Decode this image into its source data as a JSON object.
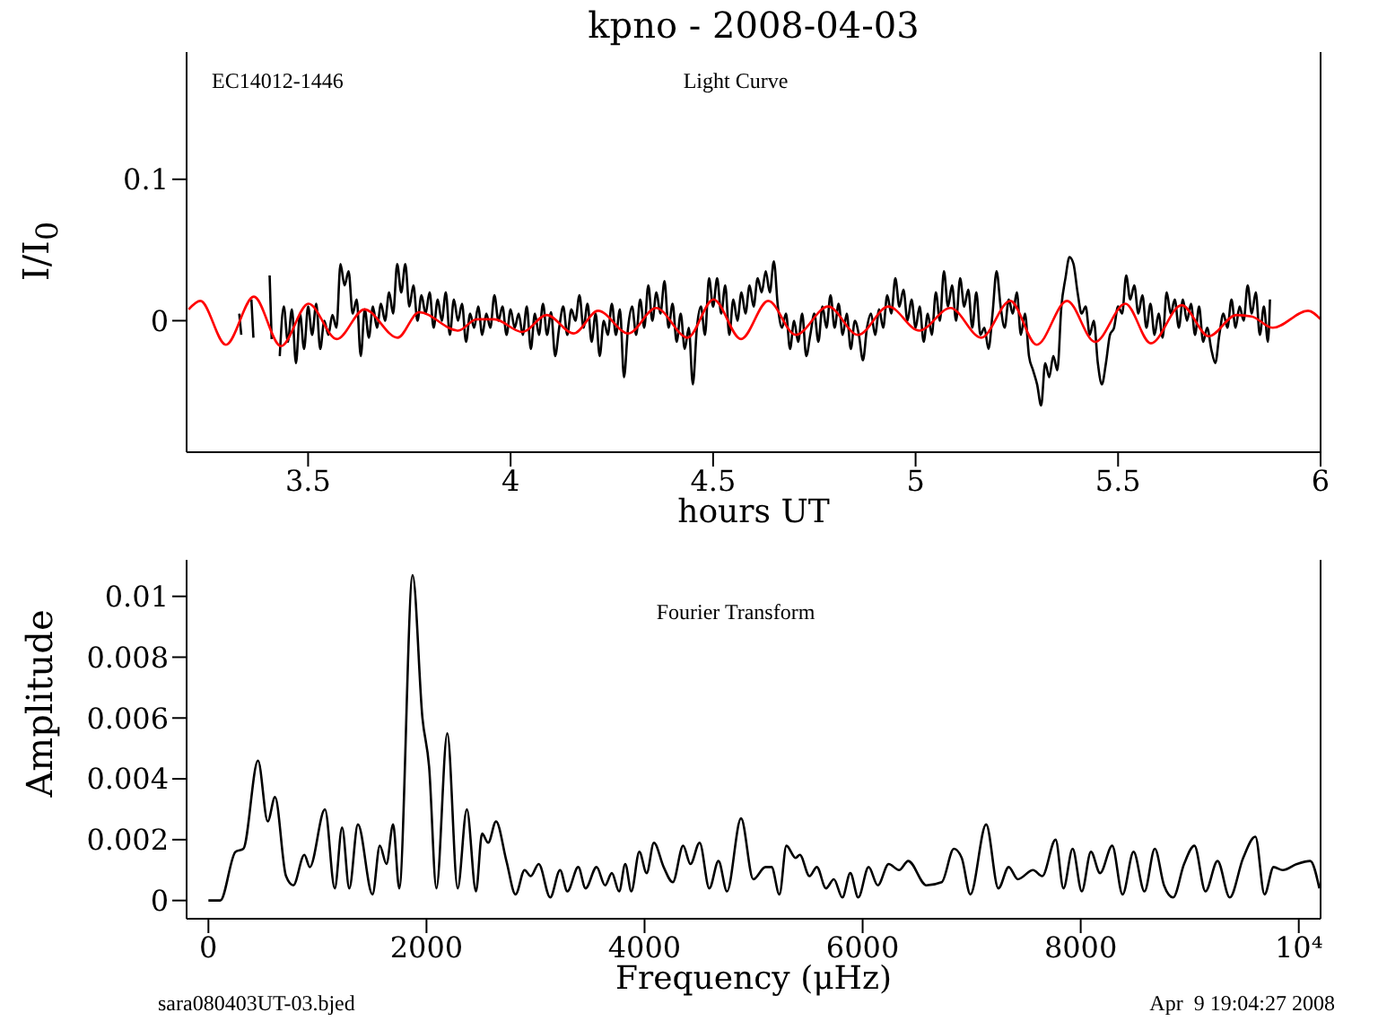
{
  "chart_data": [
    {
      "type": "line",
      "title": "kpno - 2008-04-03",
      "xlabel": "hours UT",
      "ylabel": "I/I$_{0}$",
      "annotations": [
        "EC14012-1446",
        "Light Curve"
      ],
      "marker": "none",
      "xlim": [
        3.2,
        6.0
      ],
      "xticks": [
        3.5,
        4,
        4.5,
        5,
        5.5,
        6
      ],
      "ylim": [
        -0.093,
        0.19
      ],
      "yticks": [
        0,
        0.1
      ],
      "series": [
        {
          "color": "#000000",
          "x": [
            3.33,
            3.335,
            3.34,
            3.36,
            3.365,
            3.37,
            3.405,
            3.41,
            3.42,
            3.43,
            3.44,
            3.45,
            3.46,
            3.47,
            3.48,
            3.49,
            3.5,
            3.51,
            3.52,
            3.53,
            3.54,
            3.55,
            3.56,
            3.57,
            3.58,
            3.59,
            3.6,
            3.61,
            3.62,
            3.63,
            3.64,
            3.65,
            3.66,
            3.67,
            3.68,
            3.69,
            3.7,
            3.71,
            3.72,
            3.73,
            3.74,
            3.75,
            3.76,
            3.77,
            3.78,
            3.79,
            3.8,
            3.81,
            3.82,
            3.83,
            3.84,
            3.85,
            3.86,
            3.87,
            3.88,
            3.89,
            3.9,
            3.91,
            3.92,
            3.93,
            3.94,
            3.95,
            3.96,
            3.97,
            3.98,
            3.99,
            4.0,
            4.01,
            4.02,
            4.03,
            4.04,
            4.05,
            4.06,
            4.07,
            4.08,
            4.09,
            4.1,
            4.11,
            4.12,
            4.13,
            4.14,
            4.15,
            4.16,
            4.17,
            4.18,
            4.19,
            4.2,
            4.21,
            4.22,
            4.23,
            4.24,
            4.25,
            4.26,
            4.27,
            4.28,
            4.29,
            4.3,
            4.31,
            4.32,
            4.33,
            4.34,
            4.35,
            4.36,
            4.37,
            4.38,
            4.39,
            4.4,
            4.41,
            4.42,
            4.43,
            4.44,
            4.45,
            4.46,
            4.47,
            4.48,
            4.49,
            4.5,
            4.51,
            4.52,
            4.53,
            4.54,
            4.55,
            4.56,
            4.57,
            4.58,
            4.59,
            4.6,
            4.61,
            4.62,
            4.63,
            4.64,
            4.65,
            4.66,
            4.67,
            4.68,
            4.69,
            4.7,
            4.71,
            4.72,
            4.73,
            4.74,
            4.75,
            4.76,
            4.77,
            4.78,
            4.79,
            4.8,
            4.81,
            4.82,
            4.83,
            4.84,
            4.85,
            4.86,
            4.87,
            4.88,
            4.89,
            4.9,
            4.91,
            4.92,
            4.93,
            4.94,
            4.95,
            4.96,
            4.97,
            4.98,
            4.99,
            5.0,
            5.01,
            5.02,
            5.03,
            5.04,
            5.05,
            5.06,
            5.07,
            5.08,
            5.09,
            5.1,
            5.11,
            5.12,
            5.13,
            5.14,
            5.15,
            5.16,
            5.17,
            5.18,
            5.19,
            5.2,
            5.21,
            5.22,
            5.23,
            5.24,
            5.25,
            5.26,
            5.27,
            5.28,
            5.29,
            5.3,
            5.31,
            5.32,
            5.33,
            5.34,
            5.35,
            5.36,
            5.37,
            5.38,
            5.39,
            5.4,
            5.41,
            5.42,
            5.43,
            5.44,
            5.45,
            5.46,
            5.47,
            5.48,
            5.49,
            5.5,
            5.51,
            5.52,
            5.53,
            5.54,
            5.55,
            5.56,
            5.57,
            5.58,
            5.59,
            5.6,
            5.61,
            5.62,
            5.63,
            5.64,
            5.65,
            5.66,
            5.67,
            5.68,
            5.69,
            5.7,
            5.71,
            5.72,
            5.73,
            5.74,
            5.75,
            5.76,
            5.77,
            5.78,
            5.79,
            5.8,
            5.81,
            5.82,
            5.83,
            5.84,
            5.85,
            5.86,
            5.87,
            5.875
          ],
          "values": [
            0.005,
            -0.01,
            null,
            0.015,
            -0.012,
            null,
            0.032,
            -0.013,
            null,
            -0.025,
            0.01,
            -0.015,
            0.008,
            -0.03,
            0.005,
            -0.02,
            0.01,
            -0.01,
            0.012,
            -0.02,
            0.0,
            -0.01,
            0.004,
            -0.005,
            0.04,
            0.025,
            0.035,
            0.005,
            0.015,
            -0.025,
            0.008,
            -0.012,
            0.01,
            -0.005,
            0.012,
            0.0,
            0.02,
            0.005,
            0.04,
            0.02,
            0.04,
            0.01,
            0.025,
            0.0,
            0.018,
            0.005,
            0.02,
            -0.005,
            0.015,
            0.0,
            0.02,
            -0.01,
            0.015,
            0.0,
            0.012,
            -0.015,
            0.005,
            -0.005,
            0.01,
            -0.01,
            0.005,
            -0.005,
            0.018,
            0.0,
            0.01,
            -0.01,
            0.008,
            -0.005,
            0.005,
            -0.01,
            0.01,
            -0.02,
            0.005,
            -0.01,
            0.012,
            -0.01,
            0.006,
            -0.025,
            -0.005,
            0.01,
            -0.01,
            0.008,
            0.0,
            0.018,
            -0.005,
            0.012,
            -0.015,
            0.005,
            -0.025,
            0.0,
            -0.01,
            0.012,
            -0.01,
            0.008,
            -0.04,
            -0.005,
            0.01,
            -0.01,
            0.015,
            -0.005,
            0.025,
            0.0,
            0.02,
            0.005,
            0.028,
            -0.005,
            0.012,
            -0.015,
            0.005,
            -0.02,
            -0.005,
            -0.045,
            -0.005,
            0.01,
            -0.01,
            0.03,
            0.01,
            0.03,
            0.005,
            0.025,
            -0.01,
            0.015,
            0.0,
            0.02,
            0.005,
            0.025,
            0.01,
            0.03,
            0.02,
            0.035,
            0.02,
            0.042,
            0.01,
            -0.005,
            0.005,
            -0.02,
            0.0,
            -0.015,
            0.005,
            -0.025,
            -0.01,
            0.005,
            -0.015,
            0.01,
            -0.005,
            0.018,
            -0.005,
            0.012,
            -0.01,
            0.005,
            -0.02,
            0.0,
            -0.01,
            -0.028,
            -0.005,
            0.005,
            -0.01,
            0.008,
            -0.005,
            0.018,
            0.005,
            0.03,
            0.01,
            0.022,
            0.0,
            0.015,
            -0.005,
            0.01,
            -0.015,
            0.005,
            -0.01,
            0.02,
            0.0,
            0.035,
            0.01,
            0.025,
            0.0,
            0.03,
            0.01,
            0.022,
            -0.005,
            0.02,
            -0.01,
            -0.005,
            -0.02,
            0.005,
            0.035,
            0.01,
            -0.005,
            0.015,
            0.005,
            0.02,
            -0.01,
            0.005,
            -0.025,
            -0.035,
            -0.045,
            -0.06,
            -0.03,
            -0.04,
            -0.025,
            -0.035,
            0.01,
            0.03,
            0.045,
            0.04,
            0.02,
            0.005,
            0.01,
            -0.01,
            0.0,
            -0.03,
            -0.045,
            -0.03,
            -0.01,
            -0.005,
            0.01,
            0.005,
            0.032,
            0.015,
            0.025,
            0.005,
            0.018,
            -0.005,
            0.012,
            -0.01,
            0.005,
            -0.012,
            0.02,
            0.005,
            0.015,
            -0.005,
            0.015,
            0.0,
            0.012,
            -0.01,
            0.01,
            -0.015,
            -0.005,
            -0.02,
            -0.03,
            -0.01,
            0.005,
            -0.005,
            0.015,
            -0.005,
            0.01,
            0.0,
            0.025,
            0.005,
            0.02,
            -0.01,
            0.01,
            -0.015,
            0.015
          ]
        },
        {
          "color": "#ff0000",
          "x": [
            3.205,
            3.234,
            3.297,
            3.366,
            3.433,
            3.501,
            3.571,
            3.639,
            3.721,
            3.774,
            3.871,
            3.916,
            3.96,
            4.029,
            4.089,
            4.156,
            4.216,
            4.291,
            4.359,
            4.437,
            4.501,
            4.569,
            4.636,
            4.704,
            4.784,
            4.858,
            4.933,
            5.009,
            5.086,
            5.162,
            5.234,
            5.299,
            5.374,
            5.443,
            5.518,
            5.581,
            5.657,
            5.724,
            5.792,
            5.83,
            5.882,
            5.969,
            6.0
          ],
          "values": [
            0.008,
            0.014,
            -0.017,
            0.017,
            -0.018,
            0.012,
            -0.013,
            0.008,
            -0.012,
            0.006,
            -0.007,
            0.001,
            0.001,
            -0.008,
            0.004,
            -0.009,
            0.007,
            -0.009,
            0.009,
            -0.012,
            0.015,
            -0.013,
            0.014,
            -0.01,
            0.01,
            -0.01,
            0.01,
            -0.007,
            0.009,
            -0.012,
            0.014,
            -0.017,
            0.014,
            -0.015,
            0.012,
            -0.016,
            0.011,
            -0.011,
            0.004,
            0.003,
            -0.005,
            0.007,
            0.001
          ]
        }
      ]
    },
    {
      "type": "line",
      "xlabel": "Frequency (μHz)",
      "ylabel": "Amplitude",
      "annotations": [
        "Fourier Transform",
        "sara080403UT-03.bjed",
        "Apr  9 19:04:27 2008"
      ],
      "marker": "none",
      "xlim": [
        -200,
        10200
      ],
      "xticks": [
        0,
        2000,
        4000,
        6000,
        8000,
        {
          "value": 10000,
          "label": "10⁴"
        }
      ],
      "ylim": [
        -0.0006,
        0.0112
      ],
      "yticks": [
        0,
        0.002,
        0.004,
        0.006,
        0.008,
        0.01
      ],
      "series": [
        {
          "color": "#000000",
          "x": [
            0,
            109,
            248,
            321,
            455,
            544,
            611,
            712,
            779,
            880,
            930,
            1069,
            1159,
            1226,
            1292,
            1371,
            1505,
            1572,
            1633,
            1694,
            1750,
            1873,
            1963,
            2024,
            2091,
            2191,
            2286,
            2370,
            2454,
            2510,
            2566,
            2638,
            2733,
            2817,
            2900,
            2956,
            3029,
            3135,
            3225,
            3292,
            3392,
            3459,
            3560,
            3638,
            3700,
            3767,
            3823,
            3879,
            3952,
            4019,
            4086,
            4175,
            4259,
            4354,
            4421,
            4505,
            4594,
            4678,
            4756,
            4885,
            4997,
            5109,
            5165,
            5237,
            5301,
            5385,
            5424,
            5513,
            5580,
            5664,
            5736,
            5814,
            5887,
            5960,
            6055,
            6139,
            6239,
            6334,
            6418,
            6585,
            6725,
            6837,
            6909,
            6988,
            7133,
            7245,
            7340,
            7423,
            7563,
            7647,
            7770,
            7842,
            7926,
            8010,
            8094,
            8178,
            8289,
            8384,
            8485,
            8585,
            8680,
            8764,
            8848,
            8948,
            9043,
            9144,
            9255,
            9367,
            9490,
            9602,
            9686,
            9769,
            9853,
            9982,
            10105,
            10189
          ],
          "values": [
            0,
            0,
            0.0016,
            0.0017,
            0.0046,
            0.0026,
            0.0034,
            0.0008,
            0.0005,
            0.0015,
            0.0011,
            0.003,
            0.0004,
            0.0024,
            0.0004,
            0.0025,
            0.0002,
            0.0018,
            0.0012,
            0.0025,
            0.0004,
            0.0107,
            0.006,
            0.0044,
            0.0004,
            0.0055,
            0.0004,
            0.003,
            0.0003,
            0.0022,
            0.0019,
            0.0026,
            0.0013,
            0.0002,
            0.001,
            0.0008,
            0.0012,
            0.0001,
            0.001,
            0.0003,
            0.0011,
            0.0004,
            0.0011,
            0.0005,
            0.0009,
            0.0003,
            0.0012,
            0.0003,
            0.0016,
            0.0009,
            0.0019,
            0.0011,
            0.0006,
            0.0018,
            0.0012,
            0.0019,
            0.0004,
            0.0013,
            0.0003,
            0.0027,
            0.0007,
            0.0011,
            0.0011,
            0.0002,
            0.0018,
            0.0014,
            0.0015,
            0.0008,
            0.0011,
            0.0004,
            0.0007,
            0.0001,
            0.0009,
            0.0001,
            0.0011,
            0.0005,
            0.0012,
            0.001,
            0.0013,
            0.0005,
            0.0006,
            0.0017,
            0.0014,
            0.0002,
            0.0025,
            0.0004,
            0.0011,
            0.0007,
            0.001,
            0.0008,
            0.002,
            0.0004,
            0.0017,
            0.0003,
            0.0016,
            0.0009,
            0.0018,
            0.0002,
            0.0016,
            0.0003,
            0.0017,
            0.0005,
            0.0001,
            0.0012,
            0.0018,
            0.0003,
            0.0013,
            0.0001,
            0.0014,
            0.0021,
            0.0002,
            0.0011,
            0.001,
            0.0012,
            0.0013,
            0.0004
          ]
        }
      ]
    }
  ]
}
